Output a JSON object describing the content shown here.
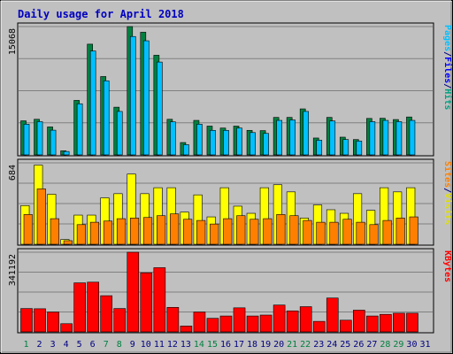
{
  "chart_data": {
    "type": "bar",
    "title": "Daily usage for April 2018",
    "categories": [
      "1",
      "2",
      "3",
      "4",
      "5",
      "6",
      "7",
      "8",
      "9",
      "10",
      "11",
      "12",
      "13",
      "14",
      "15",
      "16",
      "17",
      "18",
      "19",
      "20",
      "21",
      "22",
      "23",
      "24",
      "25",
      "26",
      "27",
      "28",
      "29",
      "30",
      "31"
    ],
    "weekend_days": [
      "1",
      "7",
      "8",
      "14",
      "15",
      "21",
      "22",
      "28",
      "29"
    ],
    "panels": [
      {
        "name": "hits-panel",
        "ymax_label": "15068",
        "ymax": 15068,
        "legend": [
          {
            "text": "Pages",
            "color": "#00c0ff"
          },
          {
            "text": "/",
            "color": "#000080"
          },
          {
            "text": "Files",
            "color": "#0000ff"
          },
          {
            "text": "/",
            "color": "#000080"
          },
          {
            "text": "Hits",
            "color": "#00a080"
          }
        ],
        "series": [
          {
            "name": "Hits",
            "color": "#008040",
            "values": [
              4000,
              4180,
              3280,
              480,
              6400,
              13000,
              9200,
              5600,
              15068,
              14400,
              11700,
              4180,
              1450,
              4050,
              3380,
              3150,
              3380,
              2880,
              2850,
              4400,
              4400,
              5400,
              1980,
              4400,
              2080,
              1800,
              4280,
              4300,
              4150,
              4450,
              0
            ]
          },
          {
            "name": "Files",
            "color": "#00c0ff",
            "values": [
              3600,
              3900,
              2900,
              400,
              6000,
              12200,
              8700,
              5100,
              13900,
              13400,
              10900,
              3880,
              1200,
              3600,
              2880,
              2880,
              3150,
              2620,
              2520,
              4050,
              4100,
              5100,
              1720,
              3980,
              1800,
              1620,
              3900,
              4050,
              3900,
              4050,
              0
            ]
          },
          {
            "name": "Pages",
            "color": "#00e0ff",
            "values": [
              0,
              0,
              0,
              0,
              0,
              0,
              0,
              0,
              0,
              0,
              0,
              0,
              0,
              0,
              0,
              0,
              0,
              0,
              0,
              0,
              0,
              0,
              0,
              0,
              0,
              0,
              0,
              0,
              0,
              0,
              0
            ]
          }
        ]
      },
      {
        "name": "visits-panel",
        "ymax_label": "684",
        "ymax": 684,
        "legend": [
          {
            "text": "Sites",
            "color": "#ff8000"
          },
          {
            "text": "/",
            "color": "#000080"
          },
          {
            "text": "Visits",
            "color": "#e0e000"
          }
        ],
        "series": [
          {
            "name": "Visits",
            "color": "#ffff00",
            "values": [
              325,
              665,
              420,
              40,
              245,
              245,
              390,
              425,
              590,
              425,
              475,
              475,
              270,
              415,
              230,
              475,
              320,
              260,
              475,
              500,
              440,
              220,
              330,
              290,
              260,
              425,
              285,
              475,
              440,
              475,
              0
            ]
          },
          {
            "name": "Sites",
            "color": "#ff8000",
            "values": [
              250,
              465,
              215,
              30,
              165,
              185,
              195,
              215,
              220,
              225,
              240,
              255,
              210,
              200,
              170,
              215,
              240,
              210,
              215,
              250,
              240,
              200,
              185,
              185,
              210,
              185,
              165,
              200,
              220,
              230,
              0
            ]
          }
        ]
      },
      {
        "name": "kbytes-panel",
        "ymax_label": "341192",
        "ymax": 341192,
        "legend": [
          {
            "text": "KBytes",
            "color": "#ff0000"
          }
        ],
        "series": [
          {
            "name": "KBytes",
            "color": "#ff0000",
            "values": [
              100000,
              99000,
              85000,
              35000,
              210000,
              213000,
              155000,
              100000,
              341192,
              253000,
              275000,
              105000,
              25000,
              85000,
              58000,
              68000,
              103000,
              68000,
              72000,
              115000,
              90000,
              108000,
              45000,
              145000,
              50000,
              93000,
              68000,
              75000,
              80000,
              80000,
              0
            ]
          }
        ]
      }
    ]
  }
}
